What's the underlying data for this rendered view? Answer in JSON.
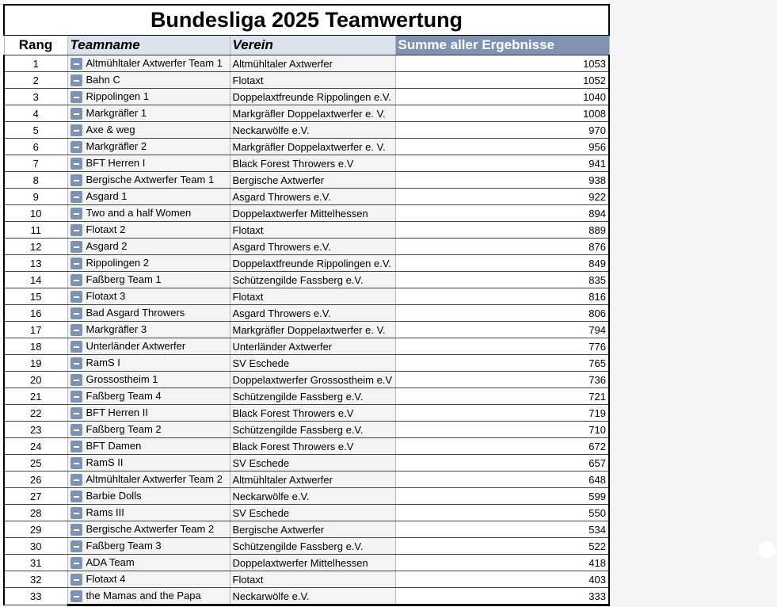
{
  "title": "Bundesliga 2025 Teamwertung",
  "headers": {
    "rang": "Rang",
    "team": "Teamname",
    "verein": "Verein",
    "summe": "Summe aller Ergebnisse"
  },
  "colors": {
    "header_accent": "#7f93b0",
    "header_light": "#dde3ec"
  },
  "rows": [
    {
      "rang": "1",
      "team": "Altmühltaler Axtwerfer Team 1",
      "verein": "Altmühltaler Axtwerfer",
      "summe": "1053"
    },
    {
      "rang": "2",
      "team": "Bahn C",
      "verein": "Flotaxt",
      "summe": "1052"
    },
    {
      "rang": "3",
      "team": "Rippolingen 1",
      "verein": "Doppelaxtfreunde Rippolingen e.V.",
      "summe": "1040"
    },
    {
      "rang": "4",
      "team": "Markgräfler 1",
      "verein": "Markgräfler Doppelaxtwerfer e. V.",
      "summe": "1008"
    },
    {
      "rang": "5",
      "team": "Axe & weg",
      "verein": "Neckarwölfe e.V.",
      "summe": "970"
    },
    {
      "rang": "6",
      "team": "Markgräfler 2",
      "verein": "Markgräfler Doppelaxtwerfer e. V.",
      "summe": "956"
    },
    {
      "rang": "7",
      "team": "BFT Herren I",
      "verein": "Black Forest Throwers e.V",
      "summe": "941"
    },
    {
      "rang": "8",
      "team": "Bergische Axtwerfer Team 1",
      "verein": "Bergische Axtwerfer",
      "summe": "938"
    },
    {
      "rang": "9",
      "team": "Asgard 1",
      "verein": "Asgard Throwers e.V.",
      "summe": "922"
    },
    {
      "rang": "10",
      "team": "Two and a half Women",
      "verein": "Doppelaxtwerfer Mittelhessen",
      "summe": "894"
    },
    {
      "rang": "11",
      "team": "Flotaxt 2",
      "verein": "Flotaxt",
      "summe": "889"
    },
    {
      "rang": "12",
      "team": "Asgard 2",
      "verein": "Asgard Throwers e.V.",
      "summe": "876"
    },
    {
      "rang": "13",
      "team": "Rippolingen 2",
      "verein": "Doppelaxtfreunde Rippolingen e.V.",
      "summe": "849"
    },
    {
      "rang": "14",
      "team": "Faßberg Team 1",
      "verein": "Schützengilde Fassberg e.V.",
      "summe": "835"
    },
    {
      "rang": "15",
      "team": "Flotaxt 3",
      "verein": "Flotaxt",
      "summe": "816"
    },
    {
      "rang": "16",
      "team": "Bad Asgard Throwers",
      "verein": "Asgard Throwers e.V.",
      "summe": "806"
    },
    {
      "rang": "17",
      "team": "Markgräfler 3",
      "verein": "Markgräfler Doppelaxtwerfer e. V.",
      "summe": "794"
    },
    {
      "rang": "18",
      "team": "Unterländer Axtwerfer",
      "verein": "Unterländer Axtwerfer",
      "summe": "776"
    },
    {
      "rang": "19",
      "team": "RamS I",
      "verein": "SV Eschede",
      "summe": "765"
    },
    {
      "rang": "20",
      "team": "Grossostheim 1",
      "verein": "Doppelaxtwerfer Grossostheim e.V",
      "summe": "736"
    },
    {
      "rang": "21",
      "team": "Faßberg Team 4",
      "verein": "Schützengilde Fassberg e.V.",
      "summe": "721"
    },
    {
      "rang": "22",
      "team": "BFT Herren II",
      "verein": "Black Forest Throwers e.V",
      "summe": "719"
    },
    {
      "rang": "23",
      "team": "Faßberg Team 2",
      "verein": "Schützengilde Fassberg e.V.",
      "summe": "710"
    },
    {
      "rang": "24",
      "team": "BFT Damen",
      "verein": "Black Forest Throwers e.V",
      "summe": "672"
    },
    {
      "rang": "25",
      "team": "RamS II",
      "verein": "SV Eschede",
      "summe": "657"
    },
    {
      "rang": "26",
      "team": "Altmühltaler Axtwerfer Team 2",
      "verein": "Altmühltaler Axtwerfer",
      "summe": "648"
    },
    {
      "rang": "27",
      "team": "Barbie Dolls",
      "verein": "Neckarwölfe e.V.",
      "summe": "599"
    },
    {
      "rang": "28",
      "team": "Rams III",
      "verein": "SV Eschede",
      "summe": "550"
    },
    {
      "rang": "29",
      "team": "Bergische Axtwerfer Team 2",
      "verein": "Bergische Axtwerfer",
      "summe": "534"
    },
    {
      "rang": "30",
      "team": "Faßberg Team 3",
      "verein": "Schützengilde Fassberg e.V.",
      "summe": "522"
    },
    {
      "rang": "31",
      "team": "ADA Team",
      "verein": "Doppelaxtwerfer Mittelhessen",
      "summe": "418"
    },
    {
      "rang": "32",
      "team": "Flotaxt 4",
      "verein": "Flotaxt",
      "summe": "403"
    },
    {
      "rang": "33",
      "team": "the Mamas and the Papa",
      "verein": "Neckarwölfe e.V.",
      "summe": "333"
    }
  ]
}
